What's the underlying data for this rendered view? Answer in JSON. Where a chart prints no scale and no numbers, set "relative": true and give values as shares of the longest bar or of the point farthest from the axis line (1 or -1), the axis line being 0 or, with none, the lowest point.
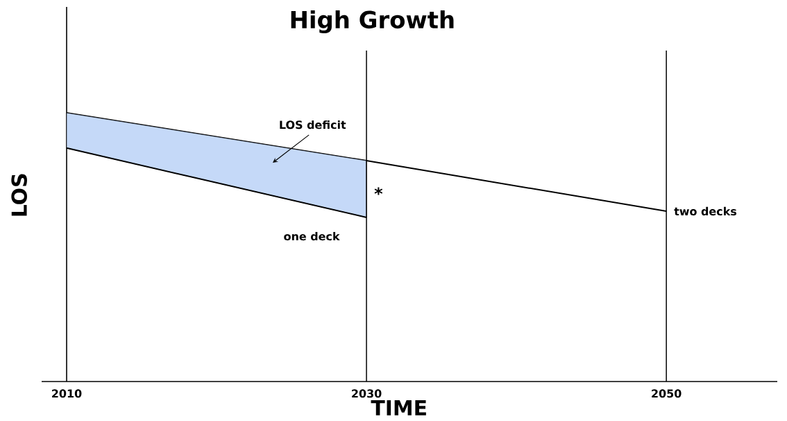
{
  "chart_data": {
    "type": "line",
    "relative": true,
    "title": "High Growth",
    "xlabel": "TIME",
    "ylabel": "LOS",
    "xlim": [
      2010,
      2057.4
    ],
    "xticks": [
      2010,
      2030,
      2050
    ],
    "tick_labels": "x",
    "marker": "none",
    "series": [
      {
        "name": "two decks",
        "color": "#000000",
        "x": [
          2010,
          2030,
          2050
        ],
        "values": [
          1,
          0.822,
          0.634
        ]
      },
      {
        "name": "one deck",
        "color": "#000000",
        "x": [
          2010,
          2030
        ],
        "values": [
          0.869,
          0.611
        ],
        "lower": [
          0.869,
          0.611
        ],
        "upper": [
          1,
          0.822
        ]
      }
    ],
    "ref_lines": [
      {
        "axis": "x",
        "value": 2030
      },
      {
        "axis": "x",
        "value": 2050
      }
    ],
    "annotations": [
      "LOS deficit",
      {
        "text": "*",
        "x": 2030,
        "y": 0.7
      }
    ]
  }
}
